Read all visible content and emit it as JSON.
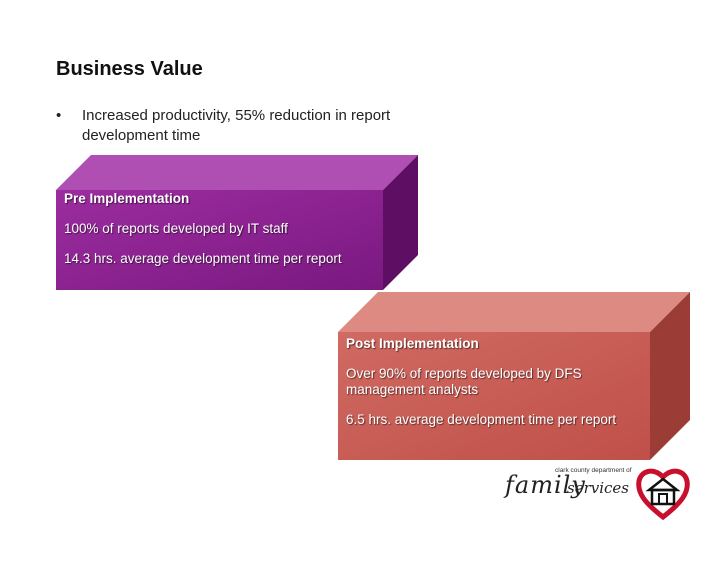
{
  "title": "Business Value",
  "bullet": {
    "marker": "•",
    "text": "Increased productivity, 55% reduction in report development time"
  },
  "pre": {
    "heading": "Pre Implementation",
    "lines": [
      "100% of reports developed by IT staff",
      "14.3 hrs. average development time per report"
    ],
    "colors": {
      "front": "#8a1f8f",
      "top": "#b04fb3",
      "side": "#5e0f63"
    }
  },
  "post": {
    "heading": "Post Implementation",
    "lines": [
      "Over 90% of reports developed by DFS management analysts",
      "6.5 hrs. average development time per report"
    ],
    "colors": {
      "front": "#c85a52",
      "top": "#dd8a82",
      "side": "#9c3c36"
    }
  },
  "logo": {
    "small_text": "clark county department of",
    "word1": "family",
    "word2": "services",
    "icon": "heart-house-icon",
    "heart_color": "#c8102e"
  }
}
